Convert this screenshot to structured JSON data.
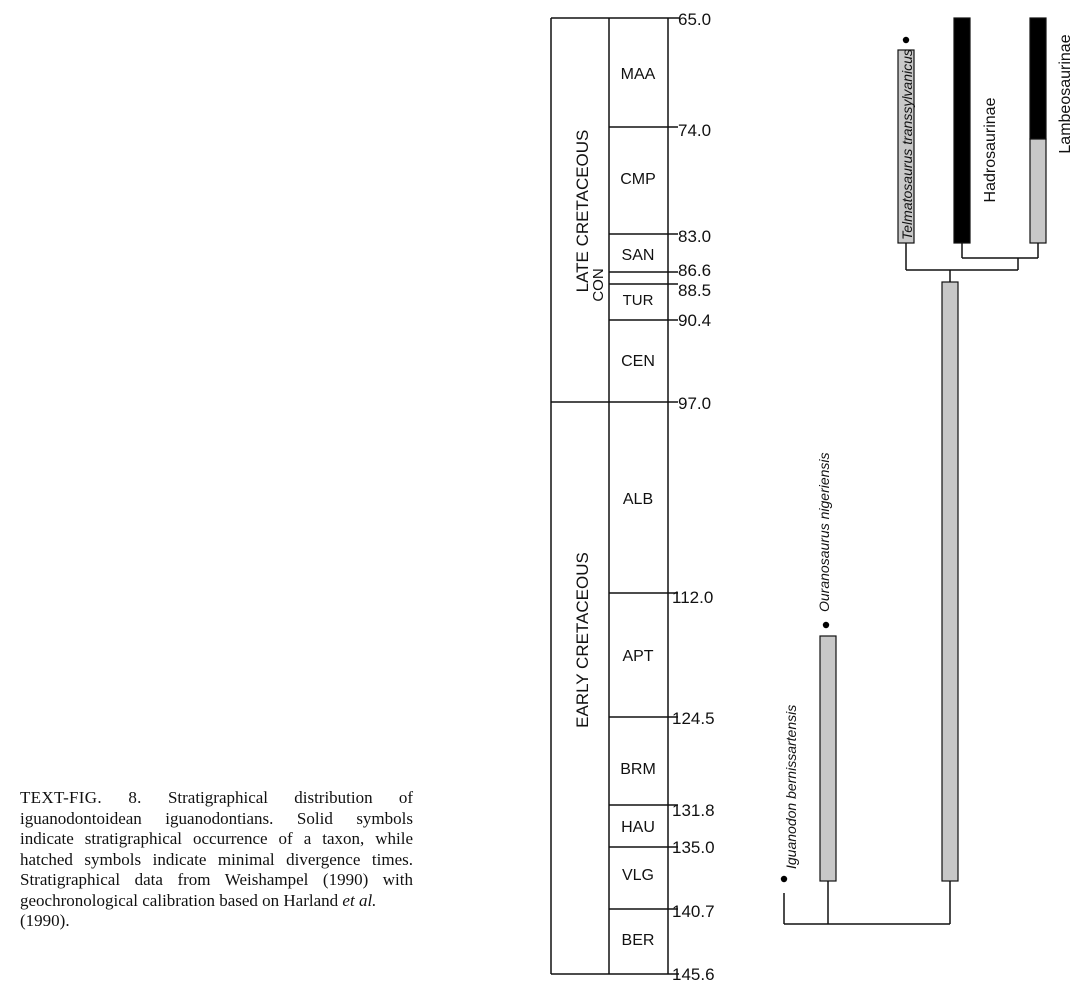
{
  "caption": {
    "label": "TEXT-FIG. 8.",
    "body": "Stratigraphical distribution of iguanodontoidean iguanodontians. Solid symbols indicate stratigraphical occurrence of a taxon, while hatched symbols indicate minimal divergence times. Stratigraphical data from Weishampel (1990) with geochronological calibration based on Harland",
    "etal": "et al.",
    "year": "(1990)."
  },
  "epochs": [
    "LATE CRETACEOUS",
    "EARLY CRETACEOUS"
  ],
  "stages": [
    "MAA",
    "CMP",
    "SAN",
    "CON",
    "TUR",
    "CEN",
    "ALB",
    "APT",
    "BRM",
    "HAU",
    "VLG",
    "BER"
  ],
  "boundaries": [
    65.0,
    74.0,
    83.0,
    86.6,
    88.5,
    90.4,
    97.0,
    112.0,
    124.5,
    131.8,
    135.0,
    140.7,
    145.6
  ],
  "boundary_labels": [
    "65.0",
    "74.0",
    "83.0",
    "86.6",
    "88.5",
    "90.4",
    "97.0",
    "112.0",
    "124.5",
    "131.8",
    "135.0",
    "140.7",
    "145.6"
  ],
  "taxa": {
    "iguanodon": "Iguanodon bernissartensis",
    "ouranosaurus": "Ouranosaurus nigeriensis",
    "telmatosaurus": "Telmatosaurus transsylvanicus",
    "hadrosaurinae": "Hadrosaurinae",
    "lambeosaurinae": "Lambeosaurinae"
  },
  "colors": {
    "solid": "#000000",
    "hatched": "#c8c8c8",
    "line": "#111111"
  }
}
